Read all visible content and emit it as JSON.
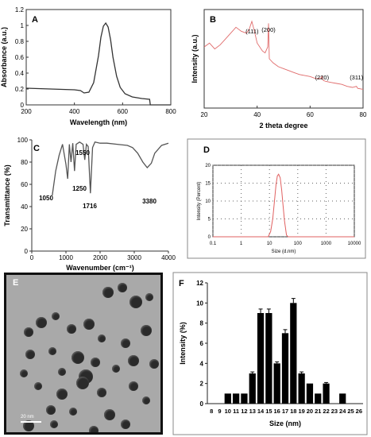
{
  "figure": {
    "panels": {
      "A": {
        "letter": "A"
      },
      "B": {
        "letter": "B"
      },
      "C": {
        "letter": "C"
      },
      "D": {
        "letter": "D"
      },
      "E": {
        "letter": "E",
        "scale_bar": "20 nm"
      },
      "F": {
        "letter": "F"
      }
    }
  },
  "chart_data": [
    {
      "panel": "A",
      "type": "line",
      "xlabel": "Wavelength (nm)",
      "ylabel": "Absorbance (a.u.)",
      "xlim": [
        200,
        800
      ],
      "ylim": [
        0,
        1.2
      ],
      "xticks": [
        "200",
        "400",
        "600",
        "800"
      ],
      "yticks": [
        "0",
        "0.2",
        "0.4",
        "0.6",
        "0.8",
        "1",
        "1.2"
      ],
      "series": [
        {
          "color": "#333333",
          "x": [
            200,
            300,
            400,
            425,
            440,
            460,
            480,
            500,
            510,
            520,
            530,
            540,
            550,
            560,
            575,
            590,
            610,
            640,
            680,
            712,
            715,
            750,
            800
          ],
          "y": [
            0.21,
            0.2,
            0.19,
            0.18,
            0.15,
            0.16,
            0.28,
            0.62,
            0.85,
            0.99,
            1.03,
            0.98,
            0.82,
            0.6,
            0.36,
            0.22,
            0.14,
            0.1,
            0.08,
            0.07,
            0.0,
            0.0,
            0.0
          ]
        }
      ]
    },
    {
      "panel": "B",
      "type": "line",
      "xlabel": "2 theta degree",
      "ylabel": "Intensity (a.u.)",
      "xlim": [
        20,
        80
      ],
      "xticks": [
        "20",
        "40",
        "60",
        "80"
      ],
      "annotations": [
        {
          "text": "(111)",
          "x": 38.1
        },
        {
          "text": "(200)",
          "x": 44.3
        },
        {
          "text": "(220)",
          "x": 64.5
        },
        {
          "text": "(311)",
          "x": 77.5
        }
      ],
      "series": [
        {
          "color": "#e06b6b",
          "x": [
            20,
            22,
            24,
            26,
            28,
            30,
            32,
            34,
            36,
            37,
            38,
            39,
            40,
            42,
            43,
            44,
            44.3,
            44.6,
            46,
            48,
            50,
            52,
            54,
            56,
            58,
            60,
            62,
            64,
            64.5,
            65,
            66,
            68,
            70,
            72,
            74,
            76,
            77.5,
            78,
            80
          ],
          "y": [
            0.62,
            0.66,
            0.6,
            0.64,
            0.7,
            0.76,
            0.82,
            0.78,
            0.76,
            0.8,
            0.88,
            0.78,
            0.66,
            0.58,
            0.56,
            0.62,
            0.86,
            0.5,
            0.46,
            0.42,
            0.4,
            0.38,
            0.36,
            0.34,
            0.33,
            0.32,
            0.3,
            0.3,
            0.32,
            0.28,
            0.27,
            0.26,
            0.25,
            0.24,
            0.22,
            0.21,
            0.22,
            0.2,
            0.19
          ]
        }
      ]
    },
    {
      "panel": "C",
      "type": "line",
      "xlabel": "Wavenumber (cm⁻¹)",
      "ylabel": "Transmittance (%)",
      "xlim": [
        0,
        4000
      ],
      "ylim": [
        0,
        100
      ],
      "xticks": [
        "0",
        "1000",
        "2000",
        "3000",
        "4000"
      ],
      "yticks": [
        "0",
        "20",
        "40",
        "60",
        "80",
        "100"
      ],
      "annotations": [
        {
          "text": "1550",
          "x": 1550,
          "y": 95
        },
        {
          "text": "1250",
          "x": 1250,
          "y": 68
        },
        {
          "text": "1050",
          "x": 1050,
          "y": 60
        },
        {
          "text": "1716",
          "x": 1716,
          "y": 55
        },
        {
          "text": "3380",
          "x": 3380,
          "y": 58
        }
      ],
      "series": [
        {
          "color": "#555555",
          "x": [
            600,
            700,
            800,
            900,
            1000,
            1050,
            1100,
            1150,
            1200,
            1250,
            1300,
            1400,
            1500,
            1550,
            1600,
            1650,
            1716,
            1780,
            1850,
            2000,
            2200,
            2500,
            2800,
            2950,
            3100,
            3250,
            3380,
            3500,
            3600,
            3800,
            4000
          ],
          "y": [
            50,
            72,
            86,
            96,
            78,
            65,
            96,
            80,
            97,
            72,
            96,
            98,
            96,
            82,
            96,
            94,
            52,
            93,
            98,
            97,
            97,
            96,
            95,
            93,
            88,
            80,
            75,
            79,
            88,
            95,
            97
          ]
        }
      ]
    },
    {
      "panel": "D",
      "type": "line",
      "xlabel": "Size (d.nm)",
      "ylabel": "Intensity (Percent)",
      "xscale": "log",
      "xlim": [
        0.1,
        10000
      ],
      "ylim": [
        0,
        20
      ],
      "xticks": [
        "0.1",
        "1",
        "10",
        "100",
        "1000",
        "10000"
      ],
      "yticks": [
        "0",
        "5",
        "10",
        "15",
        "20"
      ],
      "grid": true,
      "series": [
        {
          "color": "#e06060",
          "x": [
            0.1,
            9,
            11,
            13,
            15,
            17,
            19,
            21,
            24,
            27,
            30,
            34,
            40,
            45,
            10000
          ],
          "y": [
            0,
            0,
            1.5,
            5,
            10,
            14.5,
            17,
            17.5,
            16.5,
            13,
            9,
            4.5,
            0.5,
            0,
            0
          ]
        }
      ]
    },
    {
      "panel": "F",
      "type": "bar",
      "xlabel": "Size (nm)",
      "ylabel": "Intensity (%)",
      "ylim": [
        0,
        12
      ],
      "yticks": [
        "0",
        "2",
        "4",
        "6",
        "8",
        "10",
        "12"
      ],
      "categories": [
        "8",
        "9",
        "10",
        "11",
        "12",
        "13",
        "14",
        "15",
        "16",
        "17",
        "18",
        "19",
        "20",
        "21",
        "22",
        "23",
        "24",
        "25",
        "26"
      ],
      "values": [
        0,
        0,
        1,
        1,
        1,
        3,
        9,
        9,
        4,
        7,
        10,
        3,
        2,
        1,
        2,
        0,
        1,
        0,
        0
      ],
      "errors": [
        0,
        0,
        0,
        0,
        0,
        0.15,
        0.4,
        0.4,
        0.15,
        0.35,
        0.45,
        0.15,
        0,
        0,
        0.1,
        0,
        0,
        0,
        0
      ],
      "color": "#000000"
    }
  ]
}
